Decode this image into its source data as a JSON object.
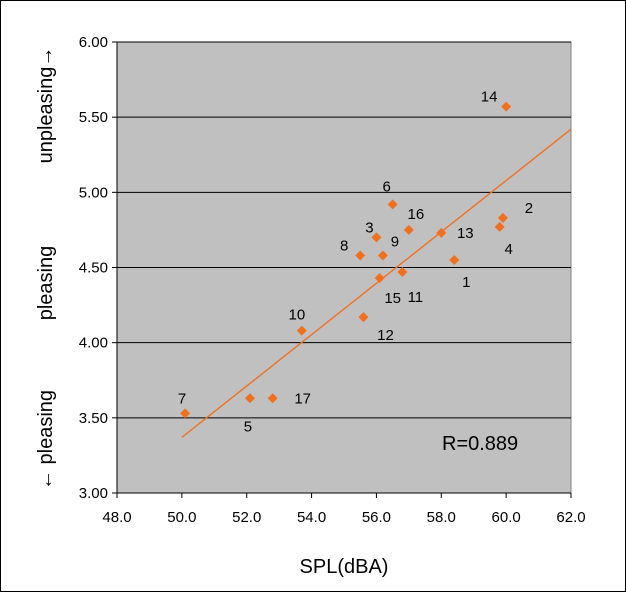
{
  "chart_data": {
    "type": "scatter",
    "xlabel": "SPL(dBA)",
    "y_side_labels": {
      "top": "unpleasing→",
      "middle": "pleasing",
      "bottom": "← pleasing"
    },
    "xlim": [
      48,
      62
    ],
    "ylim": [
      3.0,
      6.0
    ],
    "x_ticks": [
      "48.0",
      "50.0",
      "52.0",
      "54.0",
      "56.0",
      "58.0",
      "60.0",
      "62.0"
    ],
    "y_ticks": [
      "3.00",
      "3.50",
      "4.00",
      "4.50",
      "5.00",
      "5.50",
      "6.00"
    ],
    "grid": "horizontal",
    "plot_background": "#c0c0c0",
    "marker_color": "#f07020",
    "trendline_color": "#f07020",
    "trendline": {
      "x": [
        50.0,
        62.0
      ],
      "y": [
        3.37,
        5.42
      ]
    },
    "annotation": "R=0.889",
    "points": [
      {
        "label": "1",
        "x": 58.4,
        "y": 4.55
      },
      {
        "label": "2",
        "x": 59.9,
        "y": 4.83
      },
      {
        "label": "3",
        "x": 56.0,
        "y": 4.7
      },
      {
        "label": "4",
        "x": 59.8,
        "y": 4.77
      },
      {
        "label": "5",
        "x": 52.1,
        "y": 3.63
      },
      {
        "label": "6",
        "x": 56.5,
        "y": 4.92
      },
      {
        "label": "7",
        "x": 50.1,
        "y": 3.53
      },
      {
        "label": "8",
        "x": 55.5,
        "y": 4.58
      },
      {
        "label": "9",
        "x": 56.2,
        "y": 4.58
      },
      {
        "label": "10",
        "x": 53.7,
        "y": 4.08
      },
      {
        "label": "11",
        "x": 56.8,
        "y": 4.47
      },
      {
        "label": "12",
        "x": 55.6,
        "y": 4.17
      },
      {
        "label": "13",
        "x": 58.0,
        "y": 4.73
      },
      {
        "label": "14",
        "x": 60.0,
        "y": 5.57
      },
      {
        "label": "15",
        "x": 56.1,
        "y": 4.43
      },
      {
        "label": "16",
        "x": 57.0,
        "y": 4.75
      },
      {
        "label": "17",
        "x": 52.8,
        "y": 3.63
      }
    ]
  }
}
